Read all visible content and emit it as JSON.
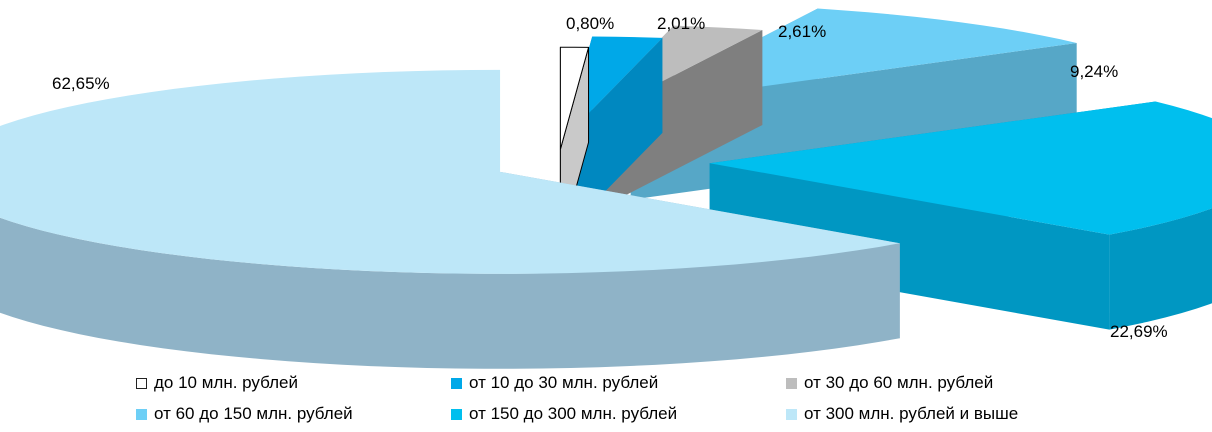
{
  "chart_data": {
    "type": "pie",
    "style": "3d-exploded",
    "slices": [
      {
        "label": "до 10 млн. рублей",
        "value": 0.8,
        "value_label": "0,80%",
        "color": "#ffffff",
        "side_color": "#c9c9c9",
        "outline": "#000000"
      },
      {
        "label": "от 10 до 30 млн. рублей",
        "value": 2.01,
        "value_label": "2,01%",
        "color": "#00a8e8",
        "side_color": "#0088c0",
        "outline": ""
      },
      {
        "label": "от 30 до 60 млн. рублей",
        "value": 2.61,
        "value_label": "2,61%",
        "color": "#bdbdbd",
        "side_color": "#7f7f7f",
        "outline": ""
      },
      {
        "label": "от 60 до 150 млн. рублей",
        "value": 9.24,
        "value_label": "9,24%",
        "color": "#6dcff6",
        "side_color": "#56a7c7",
        "outline": ""
      },
      {
        "label": "от 150 до 300 млн. рублей",
        "value": 22.69,
        "value_label": "22,69%",
        "color": "#00bfee",
        "side_color": "#0097c2",
        "outline": ""
      },
      {
        "label": "от 300 млн. рублей и выше",
        "value": 62.65,
        "value_label": "62,65%",
        "color": "#bde7f8",
        "side_color": "#8fb3c7",
        "outline": ""
      }
    ],
    "legend_position": "bottom"
  }
}
